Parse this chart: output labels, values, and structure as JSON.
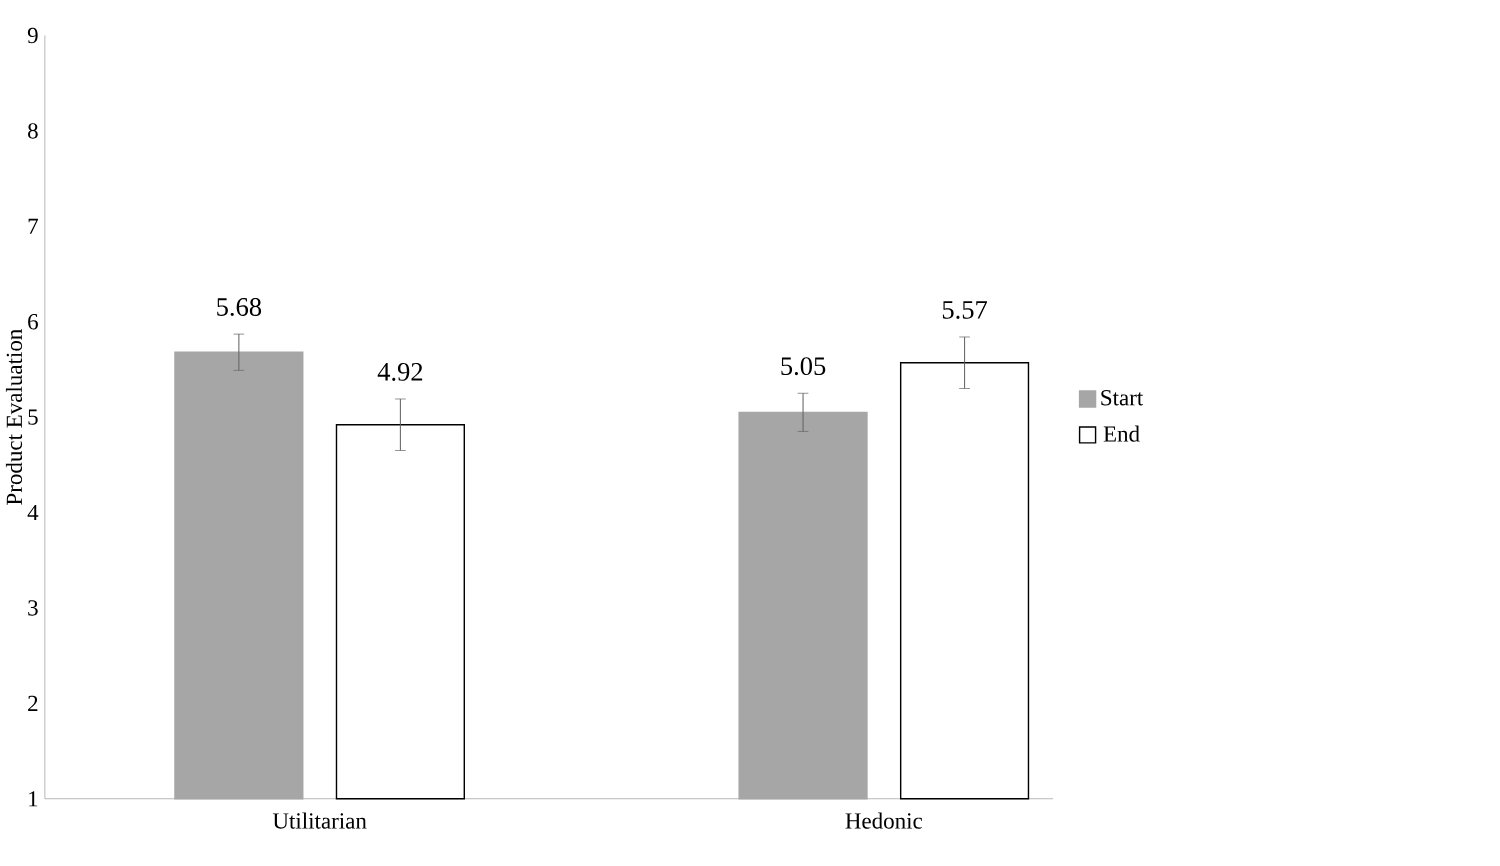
{
  "chart_data": {
    "type": "bar",
    "ylabel": "Product Evaluation",
    "categories": [
      "Utilitarian",
      "Hedonic"
    ],
    "series": [
      {
        "name": "Start",
        "color": "#a6a6a6",
        "values": [
          5.68,
          5.05
        ],
        "errors": [
          0.19,
          0.2
        ]
      },
      {
        "name": "End",
        "color": "#ffffff",
        "values": [
          4.92,
          5.57
        ],
        "errors": [
          0.27,
          0.27
        ]
      }
    ],
    "ylim": [
      1,
      9
    ],
    "yticks": [
      1,
      2,
      3,
      4,
      5,
      6,
      7,
      8,
      9
    ],
    "data_labels": true,
    "legend": "right",
    "grid": false
  }
}
